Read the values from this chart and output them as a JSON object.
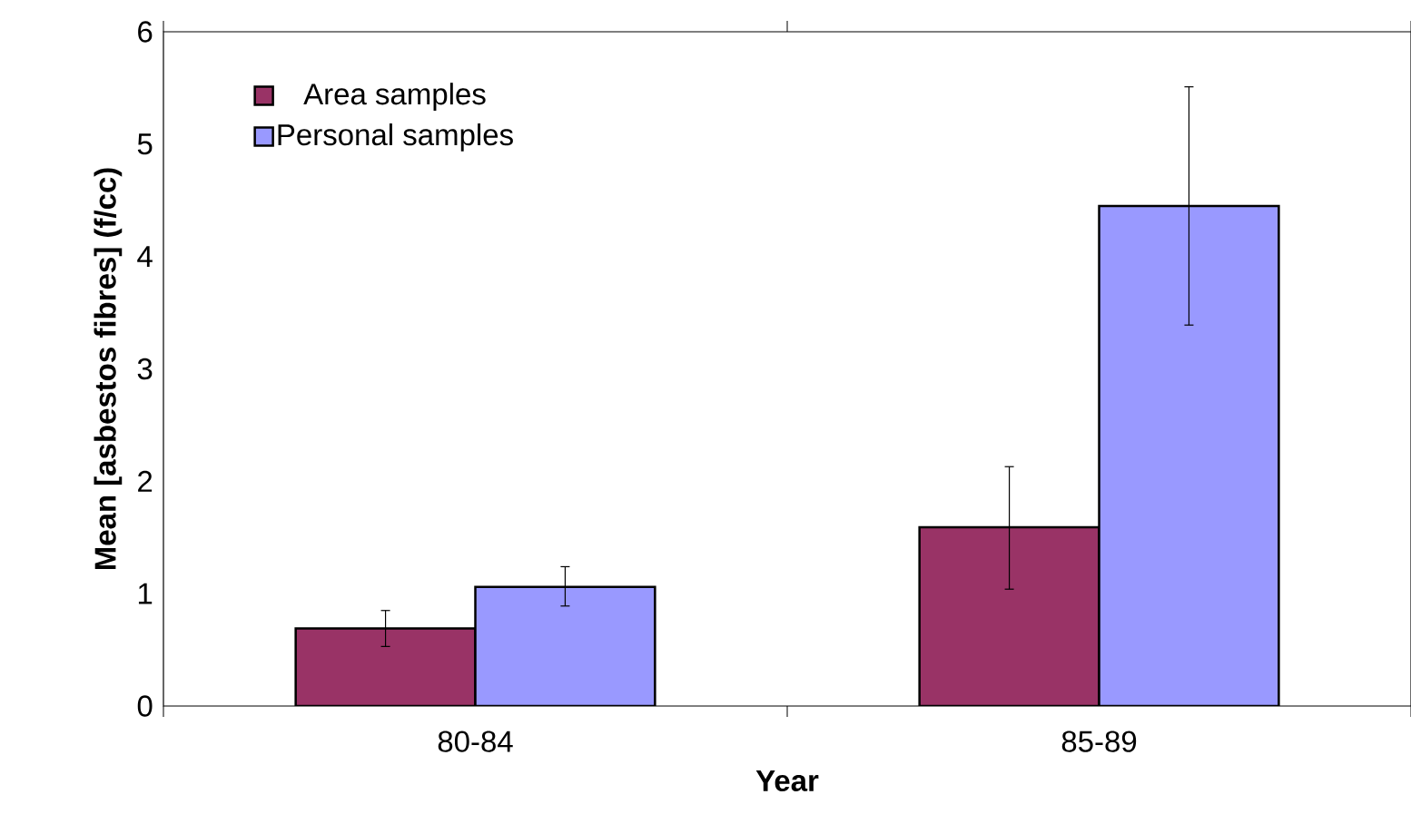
{
  "chart_data": {
    "type": "bar",
    "xlabel": "Year",
    "ylabel": "Mean [asbestos fibres] (f/cc)",
    "categories": [
      "80-84",
      "85-89"
    ],
    "series": [
      {
        "name": "Area samples",
        "color": "#993366",
        "values": [
          0.69,
          1.59
        ],
        "errors": [
          [
            0.53,
            0.85
          ],
          [
            1.04,
            2.13
          ]
        ]
      },
      {
        "name": "Personal samples",
        "color": "#9999ff",
        "values": [
          1.06,
          4.45
        ],
        "errors": [
          [
            0.89,
            1.24
          ],
          [
            3.39,
            5.51
          ]
        ]
      }
    ],
    "ylim": [
      0,
      6
    ],
    "yticks": [
      0,
      1,
      2,
      3,
      4,
      5,
      6
    ],
    "grid": false,
    "legend": "top left"
  }
}
